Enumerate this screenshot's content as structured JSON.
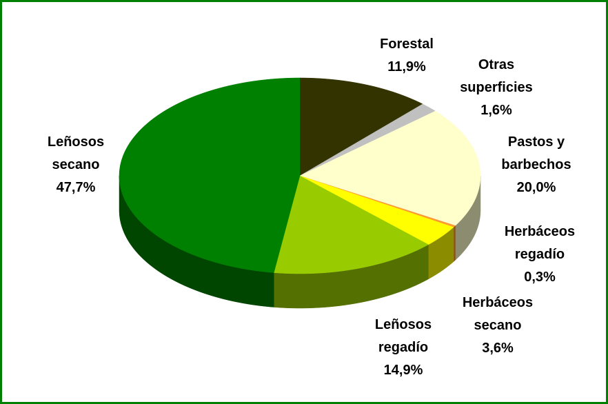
{
  "chart_data": {
    "type": "pie",
    "categories": [
      "Forestal",
      "Otras superficies",
      "Pastos y barbechos",
      "Herbáceos regadío",
      "Herbáceos secano",
      "Leñosos regadío",
      "Leñosos secano"
    ],
    "values": [
      11.9,
      1.6,
      20.0,
      0.3,
      3.6,
      14.9,
      47.7
    ],
    "value_labels": [
      "11,9%",
      "1,6%",
      "20,0%",
      "0,3%",
      "3,6%",
      "14,9%",
      "47,7%"
    ],
    "colors": [
      "#333300",
      "#c0c0c0",
      "#ffffcc",
      "#ff9933",
      "#ffff00",
      "#99cc00",
      "#008000"
    ]
  }
}
